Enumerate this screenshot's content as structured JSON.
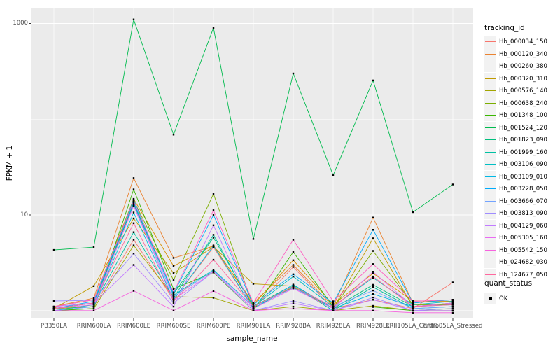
{
  "chart_data": {
    "type": "line",
    "title": "",
    "xlabel": "sample_name",
    "ylabel": "FPKM + 1",
    "y_scale": "log10",
    "y_tick_labels": [
      "1000",
      "10"
    ],
    "y_tick_values": [
      1000,
      10
    ],
    "y_minor_gridline_values": [
      100,
      1
    ],
    "ylim": [
      0.85,
      1450
    ],
    "grid": true,
    "panel_background": "#EBEBEB",
    "gridline_color": "#FFFFFF",
    "point_color": "#000000",
    "tick_text_color": "#4D4D4D",
    "legend_position": "right",
    "legend_key_fill": "#F2F2F2",
    "categories": [
      "PB350LA",
      "RRIM600LA",
      "RRIM600LE",
      "RRIM600SE",
      "RRIM600PE",
      "RRIM901LA",
      "RRIM928BA",
      "RRIM928LA",
      "RRIM928LE",
      "RRII105LA_Control",
      "RRII105LA_Stressed"
    ],
    "legend_tracking_title": "tracking_id",
    "legend_quant_title": "quant_status",
    "legend_quant_label": "OK",
    "series": [
      {
        "name": "Hb_000034_150",
        "color": "#F8766D",
        "values": [
          1.05,
          1.1,
          5.5,
          1.3,
          4.6,
          1.05,
          2.85,
          1.05,
          1.3,
          1.05,
          1.97
        ]
      },
      {
        "name": "Hb_000120_340",
        "color": "#EA8331",
        "values": [
          1.1,
          1.35,
          24.3,
          3.55,
          4.7,
          1.2,
          3.0,
          1.1,
          9.4,
          1.2,
          1.3
        ]
      },
      {
        "name": "Hb_000260_380",
        "color": "#D89000",
        "values": [
          1.1,
          1.3,
          14.7,
          2.92,
          4.8,
          1.15,
          3.36,
          1.15,
          2.45,
          1.26,
          1.25
        ]
      },
      {
        "name": "Hb_000320_310",
        "color": "#C09B00",
        "values": [
          1.05,
          1.8,
          9.2,
          2.46,
          4.65,
          1.9,
          1.8,
          1.05,
          5.7,
          1.1,
          1.2
        ]
      },
      {
        "name": "Hb_000576_140",
        "color": "#A3A500",
        "values": [
          1.0,
          1.05,
          4.8,
          1.4,
          1.36,
          1.0,
          1.1,
          1.0,
          1.12,
          1.0,
          1.0
        ]
      },
      {
        "name": "Hb_000638_240",
        "color": "#7CAE00",
        "values": [
          1.05,
          1.1,
          14.2,
          2.08,
          16.6,
          1.1,
          1.75,
          1.05,
          4.2,
          1.15,
          1.15
        ]
      },
      {
        "name": "Hb_001348_100",
        "color": "#39B600",
        "values": [
          1.0,
          1.05,
          18.5,
          1.68,
          2.5,
          1.0,
          4.1,
          1.1,
          1.09,
          1.0,
          1.05
        ]
      },
      {
        "name": "Hb_001524_120",
        "color": "#00BB4E",
        "values": [
          4.3,
          4.6,
          1100,
          69,
          900,
          5.6,
          300,
          26,
          254,
          10.7,
          20.8
        ]
      },
      {
        "name": "Hb_001823_090",
        "color": "#00BF7D",
        "values": [
          1.05,
          1.2,
          13.0,
          1.5,
          5.8,
          1.1,
          1.85,
          1.05,
          1.86,
          1.1,
          1.2
        ]
      },
      {
        "name": "Hb_001999_160",
        "color": "#00C1A3",
        "values": [
          1.0,
          1.15,
          6.6,
          1.35,
          6.2,
          1.05,
          1.8,
          1.0,
          1.76,
          1.05,
          1.1
        ]
      },
      {
        "name": "Hb_003106_090",
        "color": "#00BFC4",
        "values": [
          1.05,
          1.2,
          14.5,
          1.45,
          2.66,
          1.1,
          2.27,
          1.1,
          2.2,
          1.15,
          1.25
        ]
      },
      {
        "name": "Hb_003109_010",
        "color": "#00B8E5",
        "values": [
          1.0,
          1.1,
          10.6,
          1.3,
          4.75,
          1.05,
          1.87,
          1.05,
          1.49,
          1.1,
          1.15
        ]
      },
      {
        "name": "Hb_003228_050",
        "color": "#00ACFC",
        "values": [
          1.05,
          1.25,
          13.5,
          1.5,
          10.0,
          1.15,
          2.4,
          1.2,
          7.0,
          1.2,
          1.3
        ]
      },
      {
        "name": "Hb_003666_070",
        "color": "#74A4FF",
        "values": [
          1.0,
          1.1,
          12.6,
          1.4,
          2.6,
          1.1,
          1.72,
          1.1,
          1.62,
          1.05,
          1.1
        ]
      },
      {
        "name": "Hb_003813_090",
        "color": "#A08DFF",
        "values": [
          1.26,
          1.28,
          3.95,
          1.2,
          2.55,
          1.0,
          1.26,
          1.0,
          1.37,
          1.0,
          1.05
        ]
      },
      {
        "name": "Hb_004129_060",
        "color": "#C17BFF",
        "values": [
          1.1,
          1.2,
          3.0,
          1.1,
          7.8,
          1.0,
          1.19,
          1.0,
          1.3,
          1.0,
          1.0
        ]
      },
      {
        "name": "Hb_005305_160",
        "color": "#E96BF2",
        "values": [
          1.05,
          1.15,
          12.4,
          1.3,
          2.55,
          1.05,
          1.7,
          1.05,
          2.55,
          1.1,
          1.2
        ]
      },
      {
        "name": "Hb_005542_150",
        "color": "#F763DF",
        "values": [
          1.0,
          1.0,
          1.61,
          1.0,
          1.6,
          1.0,
          1.05,
          1.0,
          1.0,
          0.95,
          0.95
        ]
      },
      {
        "name": "Hb_024682_030",
        "color": "#FF61C3",
        "values": [
          1.1,
          1.3,
          14.0,
          1.55,
          11.2,
          1.2,
          5.5,
          1.25,
          3.06,
          1.25,
          1.3
        ]
      },
      {
        "name": "Hb_124677_050",
        "color": "#FF689E",
        "values": [
          1.05,
          1.2,
          8.2,
          1.25,
          3.4,
          1.1,
          1.78,
          1.1,
          2.27,
          1.1,
          1.15
        ]
      }
    ]
  }
}
